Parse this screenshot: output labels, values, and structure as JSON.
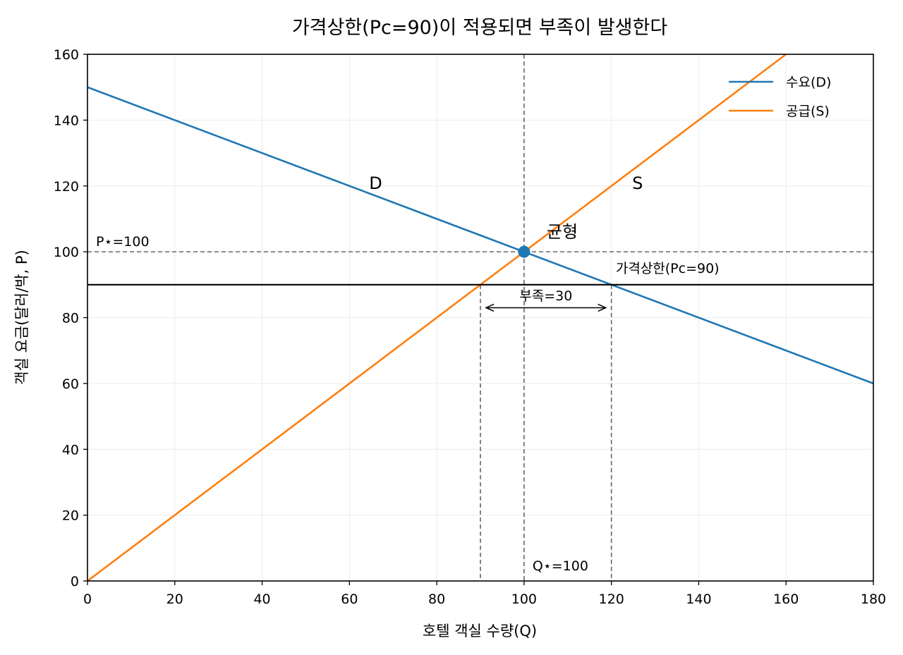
{
  "chart_data": {
    "type": "line",
    "title": "가격상한(Pc=90)이 적용되면 부족이 발생한다",
    "xlabel": "호텔 객실 수량(Q)",
    "ylabel": "객실 요금(달러/박, P)",
    "xlim": [
      0,
      180
    ],
    "ylim": [
      0,
      160
    ],
    "xticks": [
      0,
      20,
      40,
      60,
      80,
      100,
      120,
      140,
      160,
      180
    ],
    "yticks": [
      0,
      20,
      40,
      60,
      80,
      100,
      120,
      140,
      160
    ],
    "grid": true,
    "legend_position": "top-right",
    "series": [
      {
        "name": "수요(D)",
        "label": "D",
        "color": "#1f77b4",
        "x": [
          0,
          180
        ],
        "y": [
          150,
          60
        ]
      },
      {
        "name": "공급(S)",
        "label": "S",
        "color": "#ff7f0e",
        "x": [
          0,
          160
        ],
        "y": [
          0,
          160
        ]
      }
    ],
    "curve_labels": [
      {
        "text": "D",
        "x": 66,
        "y": 120
      },
      {
        "text": "S",
        "x": 126,
        "y": 120
      }
    ],
    "equilibrium": {
      "q": 100,
      "p": 100,
      "label": "균형",
      "color": "#1f77b4"
    },
    "equilibrium_price_label": "P⋆=100",
    "equilibrium_quantity_label": "Q⋆=100",
    "price_ceiling": {
      "p": 90,
      "label": "가격상한(Pc=90)",
      "color": "#000000"
    },
    "quantity_supplied": 90,
    "quantity_demanded": 120,
    "shortage": {
      "value": 30,
      "label": "부족=30",
      "from_q": 90,
      "to_q": 120,
      "arrow_p": 83
    }
  }
}
